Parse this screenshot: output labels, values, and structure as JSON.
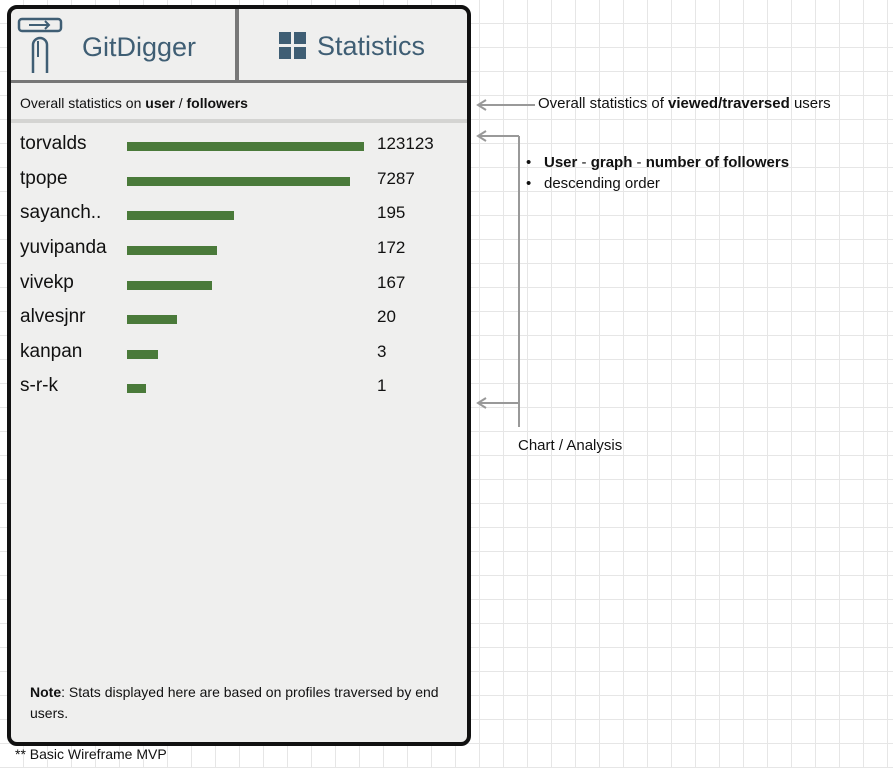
{
  "header": {
    "app_name": "GitDigger",
    "tab_label": "Statistics"
  },
  "subtitle": {
    "prefix": "Overall statistics on ",
    "user": "user",
    "sep": " / ",
    "followers": "followers"
  },
  "chart_data": {
    "type": "bar",
    "categories": [
      "torvalds",
      "tpope",
      "sayanch..",
      "yuvipanda",
      "vivekp",
      "alvesjnr",
      "kanpan",
      "s-r-k"
    ],
    "values": [
      123123,
      7287,
      195,
      172,
      167,
      20,
      3,
      1
    ],
    "value_labels": [
      "123123",
      "7287",
      "195",
      "172",
      "167",
      "20",
      "3",
      "1"
    ],
    "bar_level": [
      1.0,
      0.94,
      0.45,
      0.38,
      0.36,
      0.21,
      0.13,
      0.08
    ],
    "bar_color": "#4a7a3a"
  },
  "note": {
    "label": "Note",
    "text": ": Stats displayed here are based on profiles traversed by end users."
  },
  "footer": "** Basic Wireframe MVP",
  "annotations": {
    "top_prefix": "Overall statistics of ",
    "top_bold": "viewed/traversed",
    "top_suffix": " users",
    "bullet1_b1": "User",
    "bullet1_sep1": " - ",
    "bullet1_b2": "graph",
    "bullet1_sep2": " - ",
    "bullet1_b3": "number of followers",
    "bullet2": "descending order",
    "chart_label": "Chart / Analysis"
  },
  "colors": {
    "accent": "#3f5e74",
    "bar": "#4a7a3a",
    "panel": "#efefee"
  }
}
